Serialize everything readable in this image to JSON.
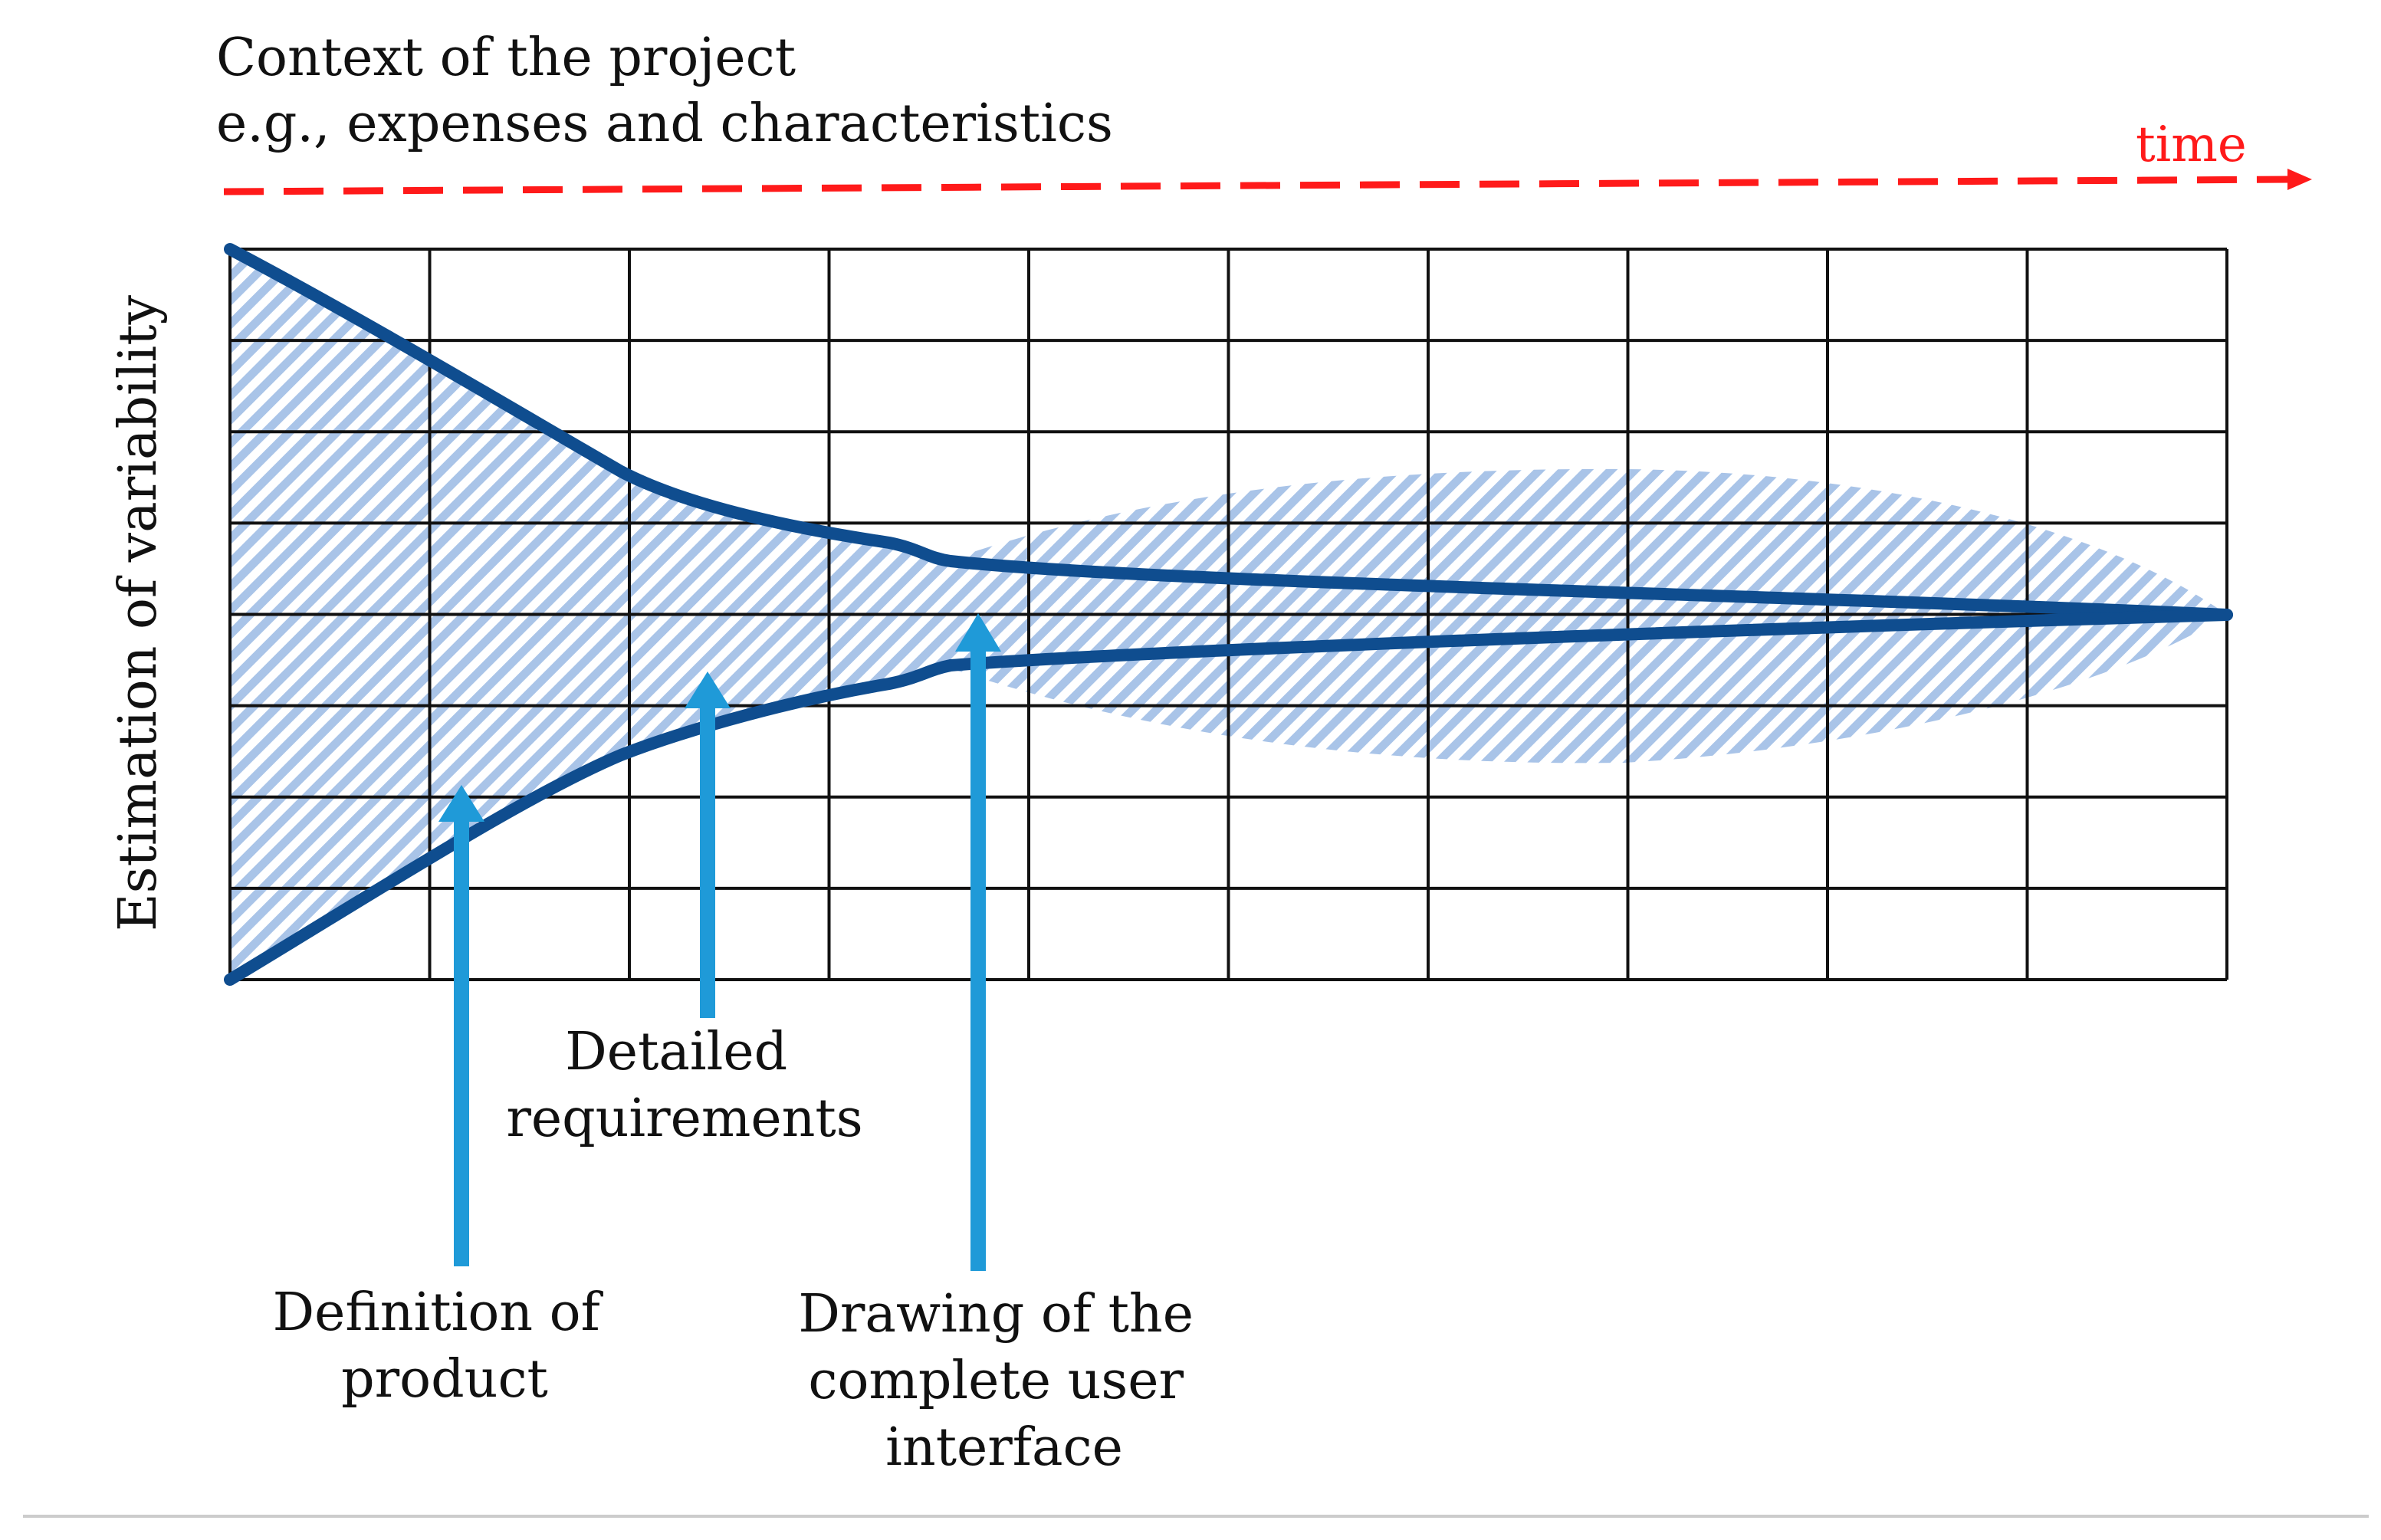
{
  "header": {
    "line1": "Context of the project",
    "line2": "e.g., expenses and characteristics"
  },
  "time_arrow": {
    "label": "time",
    "color": "#ff1a1a"
  },
  "y_axis": {
    "label": "Estimation of variability"
  },
  "grid": {
    "columns": 10,
    "rows": 8
  },
  "annotations": [
    {
      "lines": [
        "Definition of",
        "product"
      ]
    },
    {
      "lines": [
        "Detailed",
        "requirements"
      ]
    },
    {
      "lines": [
        "Drawing of the",
        "complete user",
        "interface"
      ]
    }
  ],
  "colors": {
    "funnel_line": "#0f4d8f",
    "hatch": "#a9c4e8",
    "arrow": "#1f9ad8",
    "grid": "#111111",
    "bottom_rule": "#cccccc"
  }
}
